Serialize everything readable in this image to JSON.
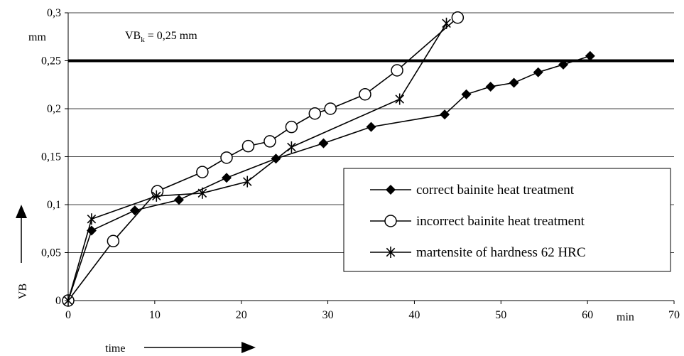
{
  "chart_data": {
    "type": "line",
    "title": "",
    "xlabel": "time",
    "ylabel": "VB",
    "x_unit": "min",
    "y_unit": "mm",
    "xlim": [
      0,
      70
    ],
    "ylim": [
      0,
      0.3
    ],
    "x_ticks": [
      0,
      10,
      20,
      30,
      40,
      50,
      60,
      70
    ],
    "y_ticks": [
      0,
      0.05,
      0.1,
      0.15,
      0.2,
      0.25,
      0.3
    ],
    "x_tick_labels": [
      "0",
      "10",
      "20",
      "30",
      "40",
      "50",
      "60",
      "70"
    ],
    "y_tick_labels": [
      "0",
      "0,05",
      "0,1",
      "0,15",
      "0,2",
      "0,25",
      "0,3"
    ],
    "horizontal_grid": true,
    "threshold": {
      "value": 0.25,
      "label_main": "VB",
      "label_sub": "k",
      "label_rest": " = 0,25 mm"
    },
    "legend_position": "right",
    "series": [
      {
        "name": "correct bainite heat treatment",
        "marker": "diamond",
        "points": [
          [
            0,
            0
          ],
          [
            2.7,
            0.073
          ],
          [
            7.7,
            0.094
          ],
          [
            12.8,
            0.105
          ],
          [
            18.3,
            0.128
          ],
          [
            24,
            0.148
          ],
          [
            29.5,
            0.164
          ],
          [
            35,
            0.181
          ],
          [
            43.5,
            0.194
          ],
          [
            46,
            0.215
          ],
          [
            48.8,
            0.223
          ],
          [
            51.5,
            0.227
          ],
          [
            54.3,
            0.238
          ],
          [
            57.2,
            0.246
          ],
          [
            60.3,
            0.255
          ]
        ]
      },
      {
        "name": "incorrect bainite heat treatment",
        "marker": "circle",
        "points": [
          [
            0,
            0
          ],
          [
            5.2,
            0.062
          ],
          [
            10.3,
            0.114
          ],
          [
            15.5,
            0.134
          ],
          [
            18.3,
            0.149
          ],
          [
            20.8,
            0.161
          ],
          [
            23.3,
            0.166
          ],
          [
            25.8,
            0.181
          ],
          [
            28.5,
            0.195
          ],
          [
            30.3,
            0.2
          ],
          [
            34.3,
            0.215
          ],
          [
            38,
            0.24
          ],
          [
            45,
            0.295
          ]
        ]
      },
      {
        "name": "martensite of hardness 62 HRC",
        "marker": "star",
        "points": [
          [
            0,
            0
          ],
          [
            2.7,
            0.085
          ],
          [
            10.2,
            0.109
          ],
          [
            15.5,
            0.112
          ],
          [
            20.7,
            0.124
          ],
          [
            25.8,
            0.16
          ],
          [
            38.3,
            0.21
          ],
          [
            43.7,
            0.289
          ]
        ]
      }
    ]
  }
}
